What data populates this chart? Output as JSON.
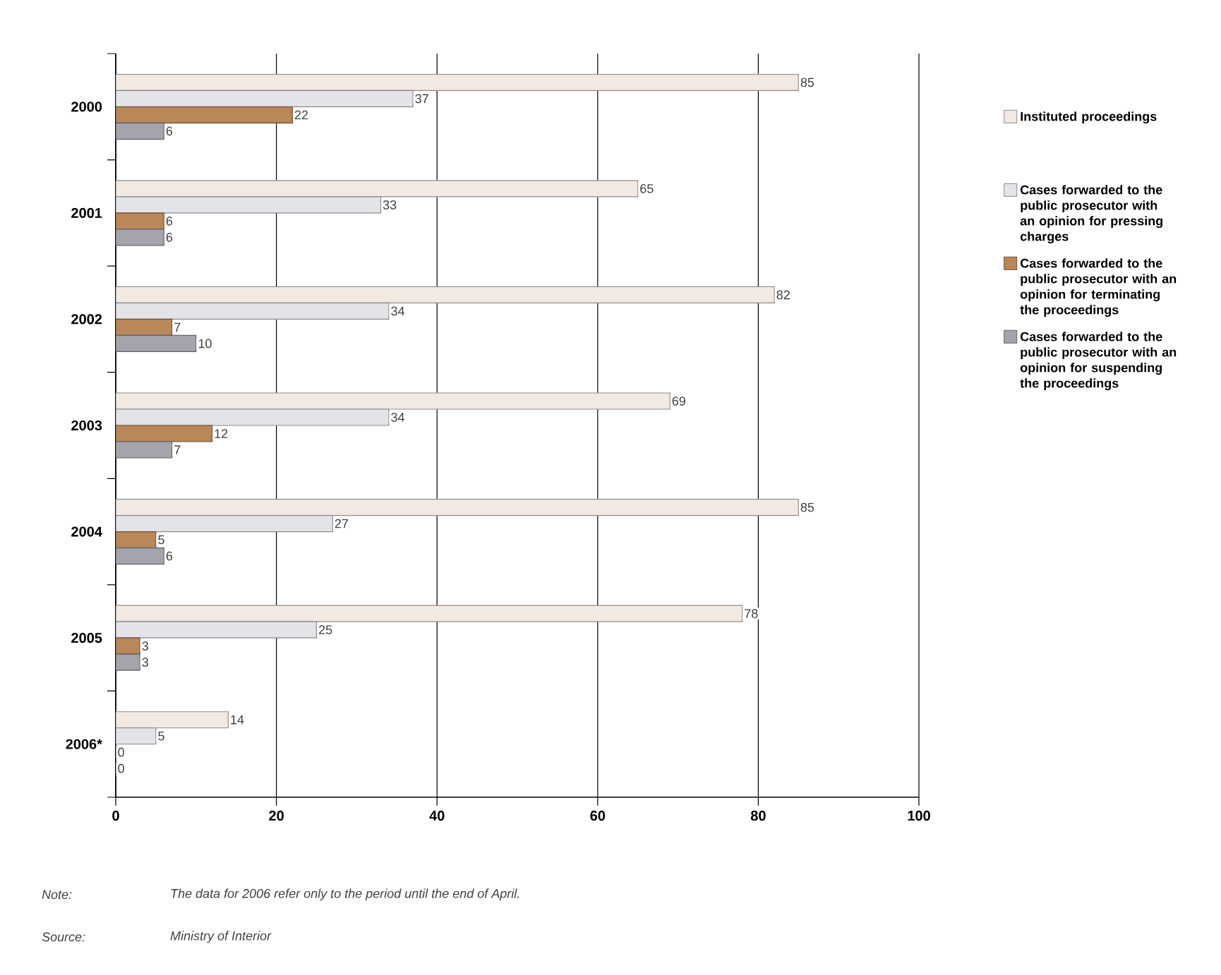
{
  "chart_data": {
    "type": "bar",
    "orientation": "horizontal",
    "categories": [
      "2000",
      "2001",
      "2002",
      "2003",
      "2004",
      "2005",
      "2006*"
    ],
    "series": [
      {
        "name": "Instituted proceedings",
        "color": "#f2e9e3",
        "values": [
          85,
          65,
          82,
          69,
          85,
          78,
          14
        ]
      },
      {
        "name": "Cases forwarded to the public prosecutor with an opinion for pressing charges",
        "color": "#e4e4e8",
        "values": [
          37,
          33,
          34,
          34,
          27,
          25,
          5
        ]
      },
      {
        "name": "Cases forwarded to the public prosecutor with an opinion for terminating the proceedings",
        "color": "#b8875a",
        "values": [
          22,
          6,
          7,
          12,
          5,
          3,
          0
        ]
      },
      {
        "name": "Cases forwarded to the public prosecutor with an opinion for suspending the proceedings",
        "color": "#a4a4ac",
        "values": [
          6,
          6,
          10,
          7,
          6,
          3,
          0
        ]
      }
    ],
    "xlim": [
      0,
      100
    ],
    "xticks": [
      0,
      20,
      40,
      60,
      80,
      100
    ],
    "grid": "x",
    "legend": "right",
    "data_labels": true,
    "annotations": [
      "Note:",
      "The data for 2006 refer only to the period until the end of April.",
      "Source:",
      "Ministry of Interior"
    ]
  }
}
